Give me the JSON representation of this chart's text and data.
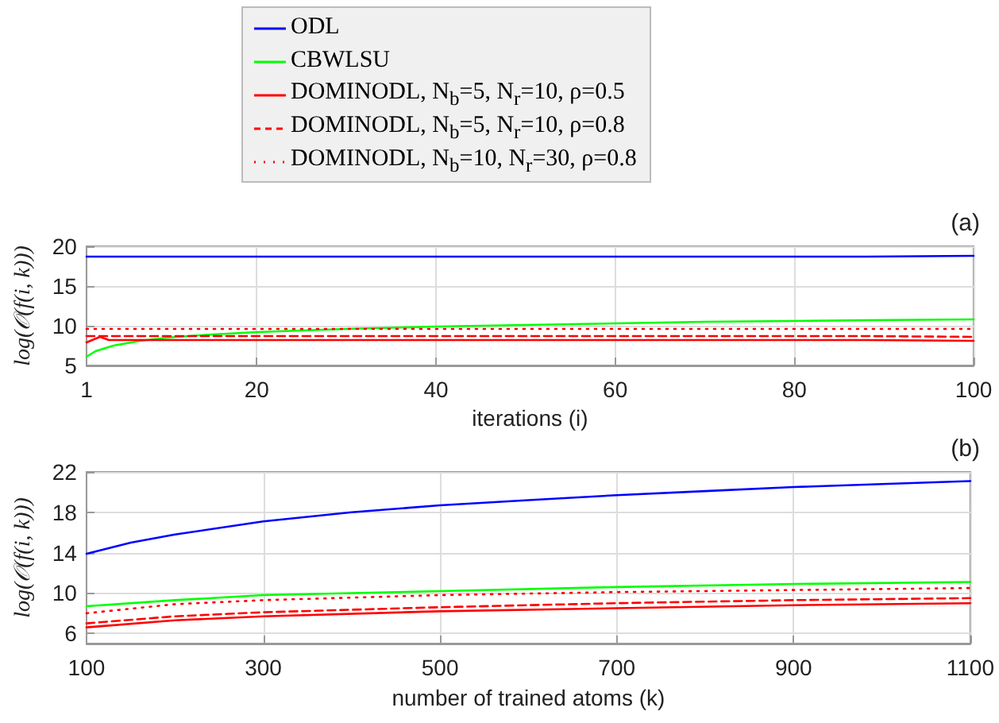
{
  "chart_data": [
    {
      "type": "line",
      "xlabel": "iterations (i)",
      "ylabel": "log(𝒪(f(i, k)))",
      "annotations": [
        "(a)"
      ],
      "xlim": [
        1,
        100
      ],
      "xticks": [
        1,
        20,
        40,
        60,
        80,
        100
      ],
      "ylim": [
        5,
        20
      ],
      "yticks": [
        5,
        10,
        15,
        20
      ],
      "grid": true,
      "legend": "top",
      "marker": "none",
      "series": [
        {
          "name": "ODL",
          "color": "#0000ff",
          "line_style": "solid",
          "x": [
            1,
            50,
            88,
            100
          ],
          "values": [
            18.7,
            18.7,
            18.7,
            18.8
          ]
        },
        {
          "name": "CBWLSU",
          "color": "#00ff00",
          "line_style": "solid",
          "x": [
            1,
            2,
            4,
            7,
            10,
            15,
            20,
            30,
            40,
            50,
            60,
            70,
            80,
            88,
            100
          ],
          "values": [
            6.1,
            6.8,
            7.5,
            8.1,
            8.5,
            8.9,
            9.2,
            9.6,
            9.9,
            10.1,
            10.3,
            10.5,
            10.6,
            10.7,
            10.8
          ]
        },
        {
          "name": "DOMINODL, N$_{b}$=5, N$_{r}$=10, ρ=0.5",
          "color": "#ff0000",
          "line_style": "solid",
          "x": [
            1,
            2.5,
            3.5,
            50,
            88,
            100
          ],
          "values": [
            7.9,
            8.6,
            8.2,
            8.2,
            8.2,
            8.1
          ]
        },
        {
          "name": "DOMINODL, N$_{b}$=5, N$_{r}$=10, ρ=0.8",
          "color": "#ff0000",
          "line_style": "dashed",
          "x": [
            1,
            50,
            88,
            100
          ],
          "values": [
            8.7,
            8.7,
            8.7,
            8.6
          ]
        },
        {
          "name": "DOMINODL, N$_{b}$=10, N$_{r}$=30, ρ=0.8",
          "color": "#ff0000",
          "line_style": "dotted",
          "x": [
            1,
            50,
            88,
            100
          ],
          "values": [
            9.6,
            9.6,
            9.6,
            9.6
          ]
        }
      ]
    },
    {
      "type": "line",
      "xlabel": "number of trained atoms (k)",
      "ylabel": "log(𝒪(f(i, k)))",
      "annotations": [
        "(b)"
      ],
      "xlim": [
        100,
        1100
      ],
      "xticks": [
        100,
        300,
        500,
        700,
        900,
        1100
      ],
      "ylim": [
        5,
        22
      ],
      "yticks": [
        6,
        10,
        14,
        18,
        22
      ],
      "grid": true,
      "marker": "none",
      "series": [
        {
          "color": "#0000ff",
          "line_style": "solid",
          "x": [
            100,
            150,
            200,
            300,
            400,
            500,
            600,
            700,
            800,
            900,
            1000,
            1100
          ],
          "values": [
            13.9,
            15.0,
            15.8,
            17.1,
            18.0,
            18.7,
            19.2,
            19.7,
            20.1,
            20.5,
            20.8,
            21.1
          ]
        },
        {
          "color": "#00ff00",
          "line_style": "solid",
          "x": [
            100,
            200,
            300,
            500,
            700,
            900,
            1100
          ],
          "values": [
            8.7,
            9.3,
            9.8,
            10.2,
            10.6,
            10.9,
            11.1
          ]
        },
        {
          "color": "#ff0000",
          "line_style": "solid",
          "x": [
            100,
            200,
            300,
            500,
            700,
            900,
            1100
          ],
          "values": [
            6.6,
            7.3,
            7.7,
            8.2,
            8.5,
            8.8,
            9.0
          ]
        },
        {
          "color": "#ff0000",
          "line_style": "dashed",
          "x": [
            100,
            200,
            300,
            500,
            700,
            900,
            1100
          ],
          "values": [
            7.0,
            7.7,
            8.1,
            8.6,
            9.0,
            9.3,
            9.5
          ]
        },
        {
          "color": "#ff0000",
          "line_style": "dotted",
          "x": [
            100,
            200,
            300,
            500,
            700,
            900,
            1100
          ],
          "values": [
            8.0,
            8.9,
            9.3,
            9.8,
            10.1,
            10.3,
            10.5
          ]
        }
      ]
    }
  ]
}
